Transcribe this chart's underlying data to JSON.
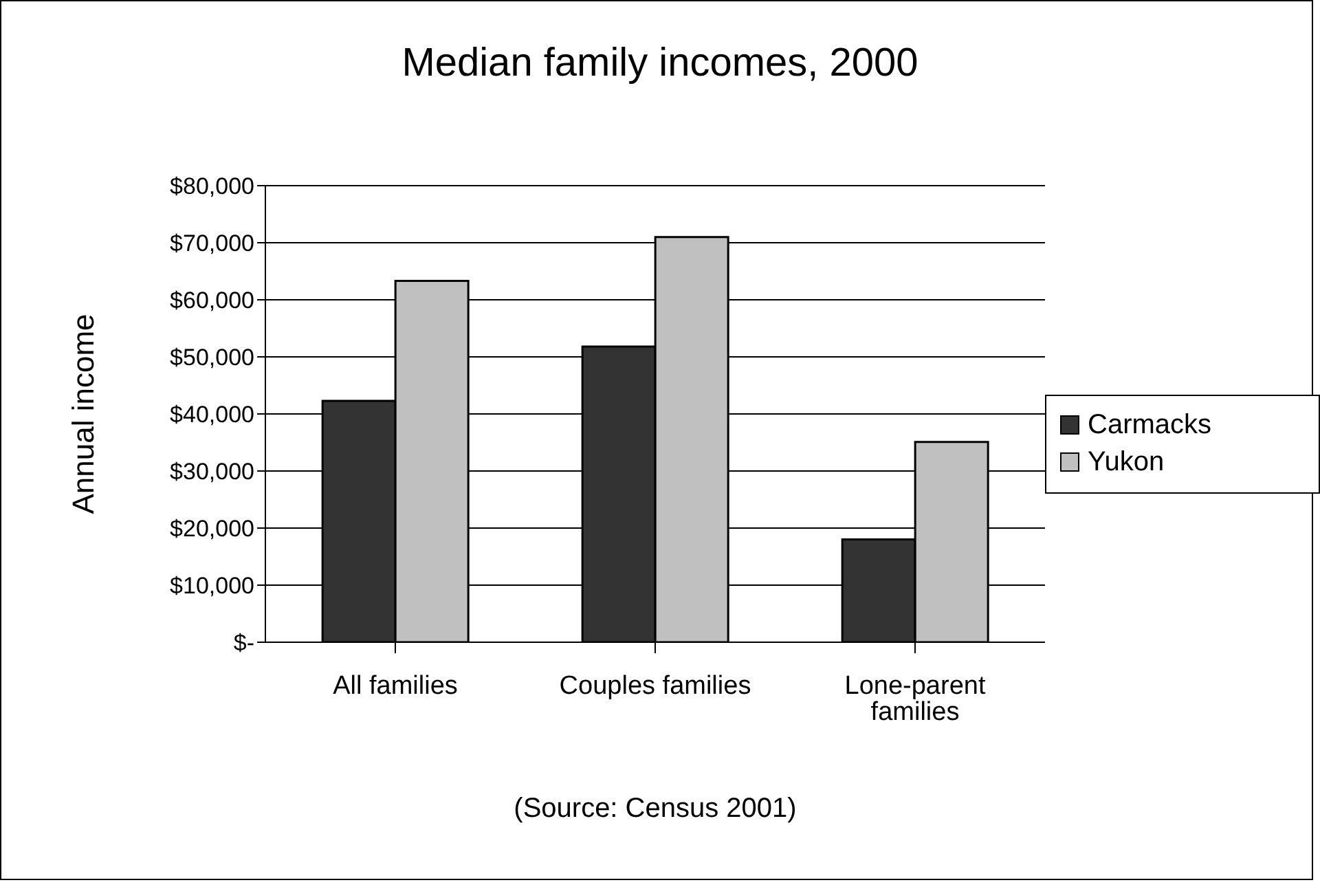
{
  "chart_data": {
    "type": "bar",
    "title": "Median family incomes, 2000",
    "ylabel": "Annual income",
    "annotations": [
      "(Source: Census 2001)"
    ],
    "categories": [
      "All families",
      "Couples families",
      "Lone-parent families"
    ],
    "series": [
      {
        "name": "Carmacks",
        "color": "#333333",
        "values": [
          42300,
          51800,
          18000
        ]
      },
      {
        "name": "Yukon",
        "color": "#c0c0c0",
        "values": [
          63300,
          71000,
          35100
        ]
      }
    ],
    "ylim": [
      0,
      80000
    ],
    "yticks": [
      {
        "value": 0,
        "label": "$-"
      },
      {
        "value": 10000,
        "label": "$10,000"
      },
      {
        "value": 20000,
        "label": "$20,000"
      },
      {
        "value": 30000,
        "label": "$30,000"
      },
      {
        "value": 40000,
        "label": "$40,000"
      },
      {
        "value": 50000,
        "label": "$50,000"
      },
      {
        "value": 60000,
        "label": "$60,000"
      },
      {
        "value": 70000,
        "label": "$70,000"
      },
      {
        "value": 80000,
        "label": "$80,000"
      }
    ],
    "grid": "y",
    "legend": "right"
  }
}
